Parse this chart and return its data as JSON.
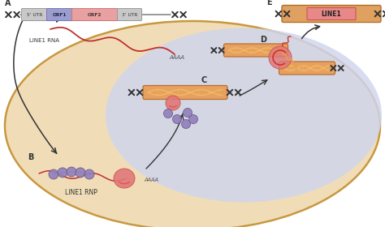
{
  "label_A": "A",
  "label_B": "B",
  "label_C": "C",
  "label_D": "D",
  "label_E": "E",
  "text_line1_rna": "LINE1 RNA",
  "text_line1_rnp": "LINE1 RNP",
  "text_aaaa1": "AAAA",
  "text_aaaa2": "AAAA",
  "text_orf1": "ORF1",
  "text_orf2": "ORF2",
  "text_5utr": "5’ UTR",
  "text_3utr": "3’ UTR",
  "text_line1": "LINE1",
  "color_orf1": "#9b9dce",
  "color_orf2": "#e8a0a0",
  "color_utr": "#c8c8c8",
  "color_line1_outer": "#e0a060",
  "color_line1_inner": "#e88888",
  "color_dna": "#444444",
  "color_rna": "#c03030",
  "color_protein_pink": "#e07878",
  "color_protein_purple": "#9080bb",
  "color_orange_rect": "#e8a060",
  "bg_cell": "#f0ddb8",
  "bg_nucleus": "#d0d5ee",
  "cell_edge": "#c89840"
}
